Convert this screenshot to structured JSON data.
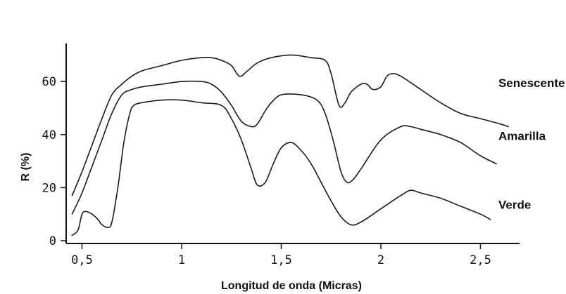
{
  "chart_data": {
    "type": "line",
    "title": "",
    "xlabel": "Longitud de onda (Micras)",
    "ylabel": "R (%)",
    "xlim": [
      0.44,
      2.65
    ],
    "ylim": [
      0,
      75
    ],
    "x_ticks": [
      {
        "value": 0.5,
        "label": "0,5"
      },
      {
        "value": 1.0,
        "label": "1"
      },
      {
        "value": 1.5,
        "label": "1,5"
      },
      {
        "value": 2.0,
        "label": "2"
      },
      {
        "value": 2.5,
        "label": "2,5"
      }
    ],
    "y_ticks": [
      {
        "value": 0,
        "label": "0"
      },
      {
        "value": 20,
        "label": "20"
      },
      {
        "value": 40,
        "label": "40"
      },
      {
        "value": 60,
        "label": "60"
      }
    ],
    "grid": false,
    "legend": "inline labels at right end of each curve",
    "series": [
      {
        "name": "Senescente",
        "x": [
          0.45,
          0.5,
          0.55,
          0.6,
          0.65,
          0.7,
          0.75,
          0.8,
          0.9,
          1.0,
          1.1,
          1.15,
          1.2,
          1.25,
          1.29,
          1.33,
          1.38,
          1.45,
          1.55,
          1.65,
          1.72,
          1.75,
          1.79,
          1.82,
          1.85,
          1.9,
          1.93,
          1.96,
          2.0,
          2.03,
          2.06,
          2.1,
          2.2,
          2.3,
          2.4,
          2.5,
          2.6,
          2.64
        ],
        "y": [
          17,
          26,
          36,
          46,
          55,
          59,
          62,
          64,
          66,
          68,
          69,
          69,
          68,
          66,
          62,
          64,
          67,
          69,
          70,
          69,
          68,
          63,
          51,
          52,
          56,
          59,
          59,
          57,
          58,
          62,
          63,
          62,
          57,
          52,
          48,
          46,
          44,
          43
        ]
      },
      {
        "name": "Amarilla",
        "x": [
          0.45,
          0.5,
          0.55,
          0.6,
          0.65,
          0.7,
          0.75,
          0.8,
          0.9,
          1.0,
          1.1,
          1.15,
          1.2,
          1.25,
          1.3,
          1.35,
          1.38,
          1.42,
          1.45,
          1.5,
          1.6,
          1.68,
          1.72,
          1.76,
          1.8,
          1.83,
          1.86,
          1.9,
          2.0,
          2.1,
          2.15,
          2.2,
          2.3,
          2.4,
          2.5,
          2.58
        ],
        "y": [
          10,
          18,
          28,
          38,
          48,
          55,
          57,
          58,
          59,
          60,
          60,
          59,
          56,
          51,
          45,
          43,
          44,
          49,
          52,
          55,
          55,
          53,
          48,
          38,
          26,
          22,
          23,
          27,
          38,
          43,
          43,
          42,
          40,
          37,
          32,
          29
        ]
      },
      {
        "name": "Verde",
        "x": [
          0.45,
          0.48,
          0.5,
          0.52,
          0.55,
          0.58,
          0.6,
          0.63,
          0.65,
          0.68,
          0.71,
          0.74,
          0.76,
          0.8,
          0.9,
          1.0,
          1.1,
          1.2,
          1.25,
          1.3,
          1.35,
          1.38,
          1.42,
          1.46,
          1.5,
          1.55,
          1.6,
          1.65,
          1.7,
          1.75,
          1.8,
          1.85,
          1.9,
          2.0,
          2.1,
          2.15,
          2.2,
          2.3,
          2.4,
          2.5,
          2.55
        ],
        "y": [
          2,
          4,
          10,
          11,
          10,
          8,
          6,
          5,
          7,
          20,
          37,
          48,
          51,
          52,
          53,
          53,
          52,
          51,
          46,
          38,
          27,
          21,
          22,
          29,
          35,
          37,
          34,
          29,
          22,
          15,
          9,
          6,
          7,
          12,
          17,
          19,
          18,
          16,
          13,
          10,
          8
        ]
      }
    ]
  }
}
